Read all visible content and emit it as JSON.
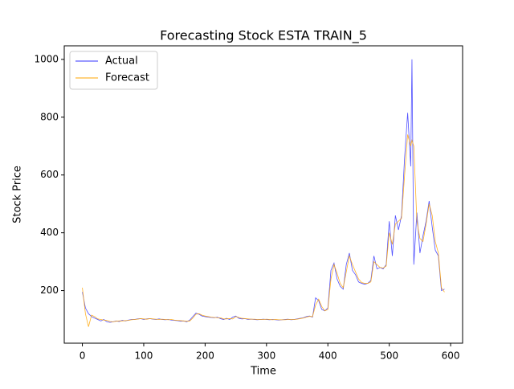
{
  "chart_data": {
    "type": "line",
    "title": "Forecasting Stock ESTA TRAIN_5",
    "x_label": "Time",
    "y_label": "Stock Price",
    "x": [
      0,
      5,
      10,
      15,
      20,
      25,
      30,
      35,
      40,
      45,
      50,
      55,
      60,
      65,
      70,
      75,
      80,
      85,
      90,
      95,
      100,
      105,
      110,
      115,
      120,
      125,
      130,
      135,
      140,
      145,
      150,
      155,
      160,
      165,
      170,
      175,
      180,
      185,
      190,
      195,
      200,
      205,
      210,
      215,
      220,
      225,
      230,
      235,
      240,
      245,
      250,
      255,
      260,
      265,
      270,
      275,
      280,
      285,
      290,
      295,
      300,
      305,
      310,
      315,
      320,
      325,
      330,
      335,
      340,
      345,
      350,
      355,
      360,
      365,
      370,
      375,
      380,
      385,
      390,
      395,
      400,
      405,
      410,
      415,
      420,
      425,
      430,
      435,
      440,
      445,
      450,
      455,
      460,
      465,
      470,
      475,
      480,
      485,
      490,
      495,
      500,
      505,
      510,
      515,
      520,
      525,
      530,
      535,
      537,
      540,
      545,
      550,
      555,
      560,
      565,
      570,
      575,
      580,
      585,
      590
    ],
    "series": [
      {
        "name": "Actual",
        "color": "#3333ff",
        "values": [
          195,
          140,
          120,
          110,
          105,
          100,
          95,
          100,
          92,
          90,
          92,
          95,
          93,
          97,
          95,
          98,
          100,
          100,
          102,
          103,
          100,
          102,
          103,
          101,
          100,
          102,
          100,
          99,
          100,
          98,
          97,
          96,
          94,
          95,
          92,
          98,
          110,
          122,
          118,
          112,
          110,
          108,
          107,
          106,
          108,
          103,
          100,
          104,
          100,
          108,
          112,
          104,
          102,
          103,
          100,
          101,
          100,
          99,
          100,
          101,
          100,
          99,
          100,
          99,
          98,
          99,
          100,
          101,
          99,
          100,
          102,
          104,
          106,
          110,
          112,
          108,
          175,
          165,
          135,
          130,
          140,
          270,
          295,
          240,
          215,
          205,
          290,
          330,
          270,
          255,
          230,
          225,
          222,
          225,
          235,
          320,
          275,
          280,
          275,
          290,
          440,
          320,
          460,
          410,
          460,
          660,
          815,
          630,
          1000,
          290,
          470,
          330,
          390,
          440,
          510,
          420,
          340,
          320,
          200,
          205
        ]
      },
      {
        "name": "Forecast",
        "color": "#ffa500",
        "values": [
          210,
          120,
          75,
          115,
          110,
          102,
          100,
          98,
          97,
          93,
          92,
          94,
          95,
          95,
          96,
          97,
          99,
          100,
          101,
          103,
          102,
          101,
          103,
          102,
          101,
          100,
          101,
          100,
          99,
          100,
          98,
          97,
          96,
          95,
          94,
          95,
          105,
          118,
          120,
          115,
          112,
          110,
          108,
          107,
          106,
          106,
          102,
          102,
          103,
          102,
          110,
          107,
          104,
          103,
          102,
          101,
          101,
          100,
          100,
          100,
          101,
          100,
          99,
          100,
          99,
          99,
          99,
          100,
          100,
          100,
          101,
          103,
          105,
          108,
          111,
          110,
          150,
          170,
          145,
          130,
          135,
          240,
          290,
          260,
          225,
          210,
          265,
          320,
          290,
          265,
          240,
          228,
          225,
          225,
          230,
          300,
          290,
          280,
          278,
          285,
          400,
          360,
          430,
          440,
          450,
          600,
          740,
          700,
          720,
          700,
          440,
          380,
          370,
          430,
          500,
          460,
          370,
          330,
          210,
          195
        ]
      }
    ],
    "xlim": [
      -29.5,
      619.5
    ],
    "ylim": [
      18,
      1047
    ],
    "xticks": [
      0,
      100,
      200,
      300,
      400,
      500,
      600
    ],
    "yticks": [
      200,
      400,
      600,
      800,
      1000
    ],
    "legend": "upper left"
  }
}
